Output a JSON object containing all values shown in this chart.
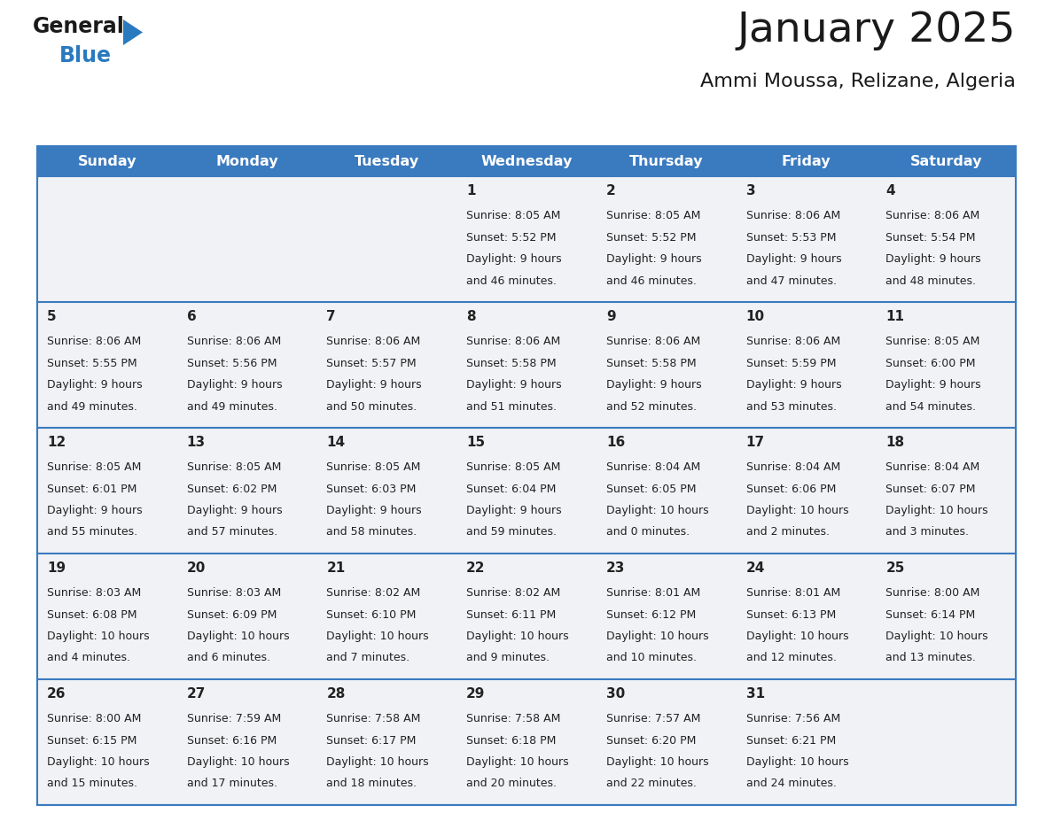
{
  "title": "January 2025",
  "subtitle": "Ammi Moussa, Relizane, Algeria",
  "days_of_week": [
    "Sunday",
    "Monday",
    "Tuesday",
    "Wednesday",
    "Thursday",
    "Friday",
    "Saturday"
  ],
  "header_bg": "#3a7abf",
  "header_text": "#ffffff",
  "cell_bg": "#f0f2f5",
  "row_line_color": "#3a7abf",
  "text_color": "#222222",
  "title_color": "#1a1a1a",
  "subtitle_color": "#1a1a1a",
  "logo_general_color": "#1a1a1a",
  "logo_blue_color": "#2a7abf",
  "weeks": [
    [
      {
        "day": null,
        "data": null
      },
      {
        "day": null,
        "data": null
      },
      {
        "day": null,
        "data": null
      },
      {
        "day": 1,
        "data": {
          "sunrise": "8:05 AM",
          "sunset": "5:52 PM",
          "daylight": "9 hours and 46 minutes."
        }
      },
      {
        "day": 2,
        "data": {
          "sunrise": "8:05 AM",
          "sunset": "5:52 PM",
          "daylight": "9 hours and 46 minutes."
        }
      },
      {
        "day": 3,
        "data": {
          "sunrise": "8:06 AM",
          "sunset": "5:53 PM",
          "daylight": "9 hours and 47 minutes."
        }
      },
      {
        "day": 4,
        "data": {
          "sunrise": "8:06 AM",
          "sunset": "5:54 PM",
          "daylight": "9 hours and 48 minutes."
        }
      }
    ],
    [
      {
        "day": 5,
        "data": {
          "sunrise": "8:06 AM",
          "sunset": "5:55 PM",
          "daylight": "9 hours and 49 minutes."
        }
      },
      {
        "day": 6,
        "data": {
          "sunrise": "8:06 AM",
          "sunset": "5:56 PM",
          "daylight": "9 hours and 49 minutes."
        }
      },
      {
        "day": 7,
        "data": {
          "sunrise": "8:06 AM",
          "sunset": "5:57 PM",
          "daylight": "9 hours and 50 minutes."
        }
      },
      {
        "day": 8,
        "data": {
          "sunrise": "8:06 AM",
          "sunset": "5:58 PM",
          "daylight": "9 hours and 51 minutes."
        }
      },
      {
        "day": 9,
        "data": {
          "sunrise": "8:06 AM",
          "sunset": "5:58 PM",
          "daylight": "9 hours and 52 minutes."
        }
      },
      {
        "day": 10,
        "data": {
          "sunrise": "8:06 AM",
          "sunset": "5:59 PM",
          "daylight": "9 hours and 53 minutes."
        }
      },
      {
        "day": 11,
        "data": {
          "sunrise": "8:05 AM",
          "sunset": "6:00 PM",
          "daylight": "9 hours and 54 minutes."
        }
      }
    ],
    [
      {
        "day": 12,
        "data": {
          "sunrise": "8:05 AM",
          "sunset": "6:01 PM",
          "daylight": "9 hours and 55 minutes."
        }
      },
      {
        "day": 13,
        "data": {
          "sunrise": "8:05 AM",
          "sunset": "6:02 PM",
          "daylight": "9 hours and 57 minutes."
        }
      },
      {
        "day": 14,
        "data": {
          "sunrise": "8:05 AM",
          "sunset": "6:03 PM",
          "daylight": "9 hours and 58 minutes."
        }
      },
      {
        "day": 15,
        "data": {
          "sunrise": "8:05 AM",
          "sunset": "6:04 PM",
          "daylight": "9 hours and 59 minutes."
        }
      },
      {
        "day": 16,
        "data": {
          "sunrise": "8:04 AM",
          "sunset": "6:05 PM",
          "daylight": "10 hours and 0 minutes."
        }
      },
      {
        "day": 17,
        "data": {
          "sunrise": "8:04 AM",
          "sunset": "6:06 PM",
          "daylight": "10 hours and 2 minutes."
        }
      },
      {
        "day": 18,
        "data": {
          "sunrise": "8:04 AM",
          "sunset": "6:07 PM",
          "daylight": "10 hours and 3 minutes."
        }
      }
    ],
    [
      {
        "day": 19,
        "data": {
          "sunrise": "8:03 AM",
          "sunset": "6:08 PM",
          "daylight": "10 hours and 4 minutes."
        }
      },
      {
        "day": 20,
        "data": {
          "sunrise": "8:03 AM",
          "sunset": "6:09 PM",
          "daylight": "10 hours and 6 minutes."
        }
      },
      {
        "day": 21,
        "data": {
          "sunrise": "8:02 AM",
          "sunset": "6:10 PM",
          "daylight": "10 hours and 7 minutes."
        }
      },
      {
        "day": 22,
        "data": {
          "sunrise": "8:02 AM",
          "sunset": "6:11 PM",
          "daylight": "10 hours and 9 minutes."
        }
      },
      {
        "day": 23,
        "data": {
          "sunrise": "8:01 AM",
          "sunset": "6:12 PM",
          "daylight": "10 hours and 10 minutes."
        }
      },
      {
        "day": 24,
        "data": {
          "sunrise": "8:01 AM",
          "sunset": "6:13 PM",
          "daylight": "10 hours and 12 minutes."
        }
      },
      {
        "day": 25,
        "data": {
          "sunrise": "8:00 AM",
          "sunset": "6:14 PM",
          "daylight": "10 hours and 13 minutes."
        }
      }
    ],
    [
      {
        "day": 26,
        "data": {
          "sunrise": "8:00 AM",
          "sunset": "6:15 PM",
          "daylight": "10 hours and 15 minutes."
        }
      },
      {
        "day": 27,
        "data": {
          "sunrise": "7:59 AM",
          "sunset": "6:16 PM",
          "daylight": "10 hours and 17 minutes."
        }
      },
      {
        "day": 28,
        "data": {
          "sunrise": "7:58 AM",
          "sunset": "6:17 PM",
          "daylight": "10 hours and 18 minutes."
        }
      },
      {
        "day": 29,
        "data": {
          "sunrise": "7:58 AM",
          "sunset": "6:18 PM",
          "daylight": "10 hours and 20 minutes."
        }
      },
      {
        "day": 30,
        "data": {
          "sunrise": "7:57 AM",
          "sunset": "6:20 PM",
          "daylight": "10 hours and 22 minutes."
        }
      },
      {
        "day": 31,
        "data": {
          "sunrise": "7:56 AM",
          "sunset": "6:21 PM",
          "daylight": "10 hours and 24 minutes."
        }
      },
      {
        "day": null,
        "data": null
      }
    ]
  ]
}
